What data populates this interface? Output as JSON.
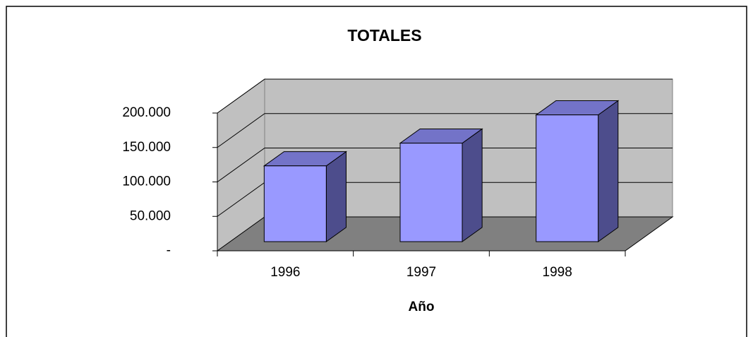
{
  "chart_data": {
    "type": "bar3d",
    "title": "TOTALES",
    "x_label": "Año",
    "categories": [
      "1996",
      "1997",
      "1998"
    ],
    "values": [
      110000,
      143000,
      184000
    ],
    "color": "#9999ff",
    "ylim": [
      0,
      200000
    ],
    "yticks": [
      {
        "value": 0,
        "label": "-"
      },
      {
        "value": 50000,
        "label": "50.000"
      },
      {
        "value": 100000,
        "label": "100.000"
      },
      {
        "value": 150000,
        "label": "150.000"
      },
      {
        "value": 200000,
        "label": "200.000"
      }
    ],
    "grid": true
  }
}
